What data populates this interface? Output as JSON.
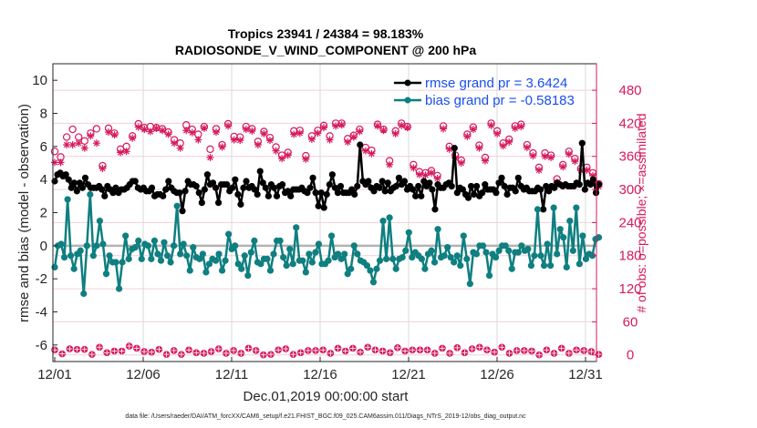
{
  "chart_data": {
    "type": "line",
    "title": "Tropics 23941 / 24384 = 98.183%",
    "subtitle": "RADIOSONDE_V_WIND_COMPONENT @ 200 hPa",
    "xlabel": "Dec.01,2019 00:00:00 start",
    "ylabel": "rmse and bias (model - observation)",
    "y2label": "# of obs: o=possible; ×=assimilated",
    "footnote": "data file: /Users/raeder/DAI/ATM_forcXX/CAM6_setup/f.e21.FHIST_BGC.f09_025.CAM6assim.011/Diags_NTrS_2019-12/obs_diag_output.nc",
    "xticks": [
      "12/01",
      "12/06",
      "12/11",
      "12/16",
      "12/21",
      "12/26",
      "12/31"
    ],
    "xlim_days": [
      0,
      31
    ],
    "ylim": [
      -7,
      11
    ],
    "yticks": [
      -6,
      -4,
      -2,
      0,
      2,
      4,
      6,
      8,
      10
    ],
    "y2lim": [
      -12,
      528
    ],
    "y2ticks": [
      0,
      60,
      120,
      180,
      240,
      300,
      360,
      420,
      480
    ],
    "grid": true,
    "legend_placement": "top-right",
    "legend": [
      {
        "label": "rmse grand pr = 3.6424",
        "color": "#000000"
      },
      {
        "label": "bias grand pr = -0.58183",
        "color": "#0f7f80"
      }
    ],
    "colors": {
      "rmse": "#000000",
      "bias": "#0f7f80",
      "obs": "#d6195e",
      "zero_line": "#b3b3b3",
      "grid": "#f2cfdc"
    },
    "x_step_days": 0.25,
    "series": [
      {
        "name": "rmse",
        "values": [
          3.9,
          4.3,
          4.4,
          4.2,
          4.3,
          4.0,
          3.5,
          3.8,
          3.3,
          3.8,
          3.5,
          4.1,
          3.7,
          3.5,
          3.5,
          3.5,
          3.6,
          3.4,
          3.0,
          3.6,
          3.4,
          3.2,
          3.5,
          3.2,
          3.4,
          3.4,
          3.5,
          3.7,
          3.9,
          3.9,
          3.5,
          3.4,
          3.5,
          3.3,
          3.3,
          3.5,
          3.0,
          3.1,
          3.1,
          3.0,
          3.4,
          3.9,
          3.5,
          3.3,
          3.2,
          3.2,
          2.1,
          3.3,
          3.9,
          3.7,
          3.7,
          3.6,
          3.2,
          2.6,
          3.4,
          4.3,
          3.7,
          3.8,
          3.5,
          2.6,
          3.7,
          3.7,
          3.7,
          3.3,
          3.5,
          4.0,
          3.1,
          2.5,
          3.5,
          3.9,
          3.5,
          3.6,
          3.4,
          3.1,
          4.5,
          3.8,
          3.5,
          3.0,
          3.7,
          3.5,
          3.0,
          3.6,
          3.7,
          3.2,
          3.3,
          3.0,
          3.4,
          3.4,
          3.4,
          3.5,
          3.3,
          3.2,
          3.5,
          4.1,
          3.2,
          2.4,
          3.2,
          2.3,
          3.1,
          3.7,
          4.3,
          3.5,
          3.2,
          3.6,
          3.2,
          3.2,
          3.2,
          3.4,
          3.1,
          3.6,
          6.1,
          3.9,
          3.7,
          3.9,
          3.5,
          3.3,
          3.6,
          3.5,
          3.9,
          3.3,
          3.8,
          3.3,
          3.5,
          3.6,
          4.1,
          3.7,
          3.9,
          3.4,
          3.6,
          3.4,
          3.0,
          3.6,
          3.0,
          3.9,
          3.6,
          3.8,
          3.4,
          2.2,
          3.7,
          3.5,
          3.5,
          3.7,
          3.8,
          3.6,
          5.9,
          3.2,
          3.5,
          3.4,
          3.1,
          2.9,
          3.6,
          3.1,
          3.6,
          3.0,
          3.2,
          3.7,
          3.4,
          3.4,
          3.4,
          3.2,
          3.8,
          4.1,
          3.6,
          3.1,
          3.5,
          3.5,
          3.3,
          4.1,
          3.6,
          3.4,
          3.5,
          3.3,
          3.3,
          3.3,
          3.5,
          3.4,
          2.2,
          3.6,
          3.3,
          3.6,
          3.5,
          3.8,
          3.7,
          3.6,
          3.7,
          3.6,
          3.6,
          3.6,
          3.8,
          3.7,
          6.2,
          3.4,
          3.8,
          3.7,
          4.0,
          3.2,
          3.7
        ]
      },
      {
        "name": "bias",
        "values": [
          -1.3,
          0.0,
          0.1,
          -0.7,
          2.8,
          -0.6,
          -1.4,
          -0.5,
          -0.3,
          -2.9,
          0.0,
          3.1,
          -0.6,
          0.0,
          1.5,
          0.1,
          -1.7,
          -0.6,
          -1.0,
          -1.0,
          -2.6,
          -1.0,
          0.6,
          -0.8,
          -0.2,
          -0.1,
          0.3,
          -0.8,
          0.1,
          0.0,
          -0.8,
          0.3,
          -0.5,
          -0.9,
          0.2,
          -0.6,
          -1.0,
          0.0,
          2.4,
          -0.5,
          0.1,
          -0.6,
          -1.5,
          -0.1,
          -0.7,
          -0.8,
          -0.5,
          -1.6,
          -1.1,
          -0.8,
          -0.9,
          -0.5,
          -1.5,
          -0.9,
          0.7,
          -0.2,
          0.0,
          -1.1,
          -1.4,
          -0.6,
          -1.8,
          -0.4,
          0.3,
          -1.0,
          -1.1,
          -0.8,
          -0.8,
          -1.5,
          -0.5,
          0.3,
          0.3,
          -0.7,
          -1.2,
          -0.2,
          -1.1,
          1.1,
          -0.9,
          -0.9,
          -1.6,
          -0.5,
          -1.0,
          -0.4,
          0.1,
          -1.1,
          -1.1,
          -0.9,
          0.6,
          -0.7,
          -0.5,
          -0.8,
          -0.5,
          -1.7,
          -1.4,
          0.0,
          -0.5,
          -0.9,
          -1.0,
          -1.2,
          -1.5,
          -2.2,
          -1.4,
          -0.9,
          1.5,
          -0.8,
          1.7,
          -0.8,
          -1.4,
          -0.8,
          -0.7,
          -0.3,
          0.8,
          -0.7,
          -0.4,
          -0.6,
          -0.8,
          -1.4,
          -0.5,
          -0.3,
          -1.0,
          1.0,
          -0.7,
          -0.6,
          -0.1,
          -0.7,
          -1.0,
          -0.6,
          -1.2,
          0.6,
          -0.8,
          -2.3,
          -0.4,
          -0.5,
          0.0,
          0.0,
          -0.4,
          -1.8,
          -0.5,
          -0.7,
          -0.3,
          0.0,
          0.0,
          -0.3,
          -1.4,
          -0.4,
          -0.4,
          0.0,
          -0.3,
          -0.2,
          -1.2,
          -0.6,
          2.2,
          -0.6,
          -1.2,
          0.1,
          -1.2,
          2.3,
          -0.5,
          1.0,
          0.5,
          -1.3,
          1.5,
          -0.3,
          2.3,
          -1.1,
          0.6,
          -0.8,
          -0.5,
          -0.6,
          0.4,
          0.5
        ]
      },
      {
        "name": "obs_possible",
        "values": [
          369,
          359,
          395,
          409,
          395,
          388,
          402,
          410,
          343,
          411,
          402,
          373,
          378,
          397,
          419,
          412,
          414,
          412,
          410,
          404,
          390,
          384,
          417,
          409,
          400,
          414,
          373,
          410,
          381,
          419,
          396,
          395,
          414,
          410,
          387,
          405,
          394,
          377,
          362,
          367,
          406,
          407,
          361,
          397,
          407,
          416,
          397,
          420,
          420,
          392,
          398,
          409,
          376,
          371,
          418,
          409,
          352,
          406,
          420,
          414,
          345,
          332,
          330,
          334,
          325,
          415,
          378,
          362,
          353,
          400,
          413,
          380,
          358,
          420,
          406,
          384,
          391,
          415,
          418,
          381,
          366,
          340,
          366,
          362,
          319,
          345,
          369,
          356,
          338,
          340,
          330,
          310
        ]
      },
      {
        "name": "obs_assimilated",
        "values": [
          349,
          349,
          381,
          381,
          384,
          375,
          397,
          384,
          338,
          404,
          399,
          367,
          369,
          393,
          413,
          409,
          405,
          411,
          407,
          400,
          384,
          375,
          407,
          403,
          390,
          411,
          358,
          404,
          377,
          415,
          390,
          389,
          409,
          406,
          381,
          401,
          389,
          370,
          356,
          362,
          400,
          402,
          355,
          391,
          402,
          412,
          390,
          415,
          417,
          386,
          395,
          405,
          370,
          365,
          415,
          407,
          345,
          401,
          416,
          412,
          339,
          327,
          326,
          330,
          320,
          410,
          373,
          357,
          348,
          396,
          409,
          375,
          352,
          416,
          401,
          379,
          386,
          411,
          414,
          376,
          361,
          335,
          360,
          358,
          313,
          341,
          364,
          351,
          334,
          335,
          325,
          305
        ]
      },
      {
        "name": "obs_count_low_possible",
        "values": [
          9,
          2,
          11,
          10,
          10,
          1,
          14,
          4,
          7,
          7,
          16,
          12,
          6,
          5,
          10,
          1,
          8,
          1,
          9,
          4,
          3,
          6,
          11,
          3,
          8,
          3,
          12,
          8,
          0,
          1,
          9,
          11,
          1,
          4,
          8,
          8,
          9,
          3,
          12,
          7,
          12,
          5,
          14,
          9,
          7,
          4,
          13,
          7,
          9,
          9,
          9,
          3,
          12,
          3,
          13,
          4,
          11,
          14,
          9,
          5,
          14,
          3,
          8,
          8,
          7,
          0,
          9,
          3,
          12,
          3,
          9,
          8,
          6,
          1
        ]
      }
    ]
  }
}
